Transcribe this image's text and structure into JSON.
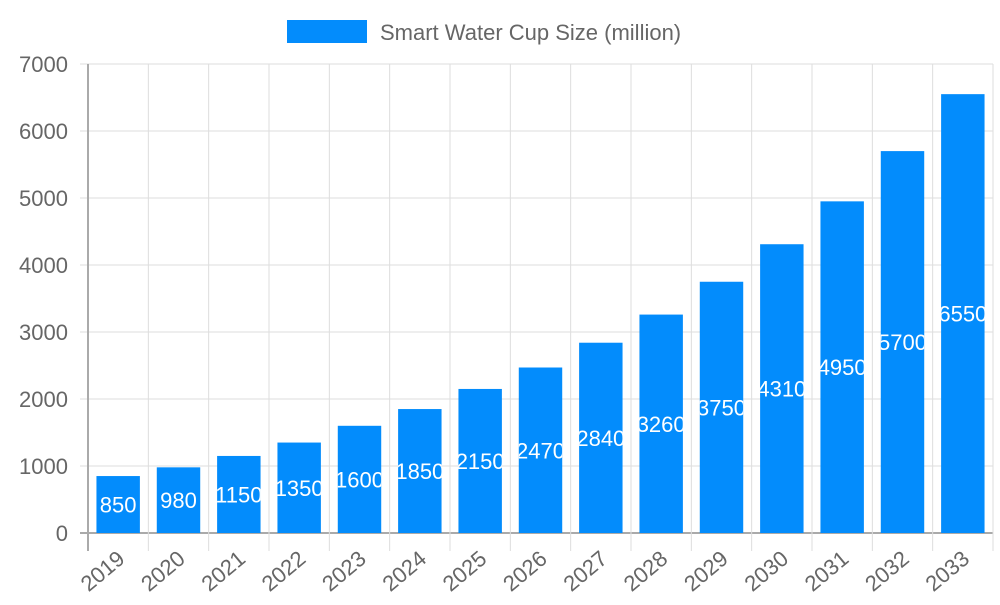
{
  "chart_data": {
    "type": "bar",
    "title": "",
    "xlabel": "",
    "ylabel": "",
    "categories": [
      "2019",
      "2020",
      "2021",
      "2022",
      "2023",
      "2024",
      "2025",
      "2026",
      "2027",
      "2028",
      "2029",
      "2030",
      "2031",
      "2032",
      "2033"
    ],
    "series": [
      {
        "name": "Smart Water Cup Size (million)",
        "values": [
          850,
          980,
          1150,
          1350,
          1600,
          1850,
          2150,
          2470,
          2840,
          3260,
          3750,
          4310,
          4950,
          5700,
          6550
        ],
        "color": "#038cfc"
      }
    ],
    "ylim": [
      0,
      7000
    ],
    "yticks": [
      0,
      1000,
      2000,
      3000,
      4000,
      5000,
      6000,
      7000
    ],
    "grid": true,
    "legend_position": "top",
    "data_labels": true,
    "data_label_color": "#ffffff"
  }
}
